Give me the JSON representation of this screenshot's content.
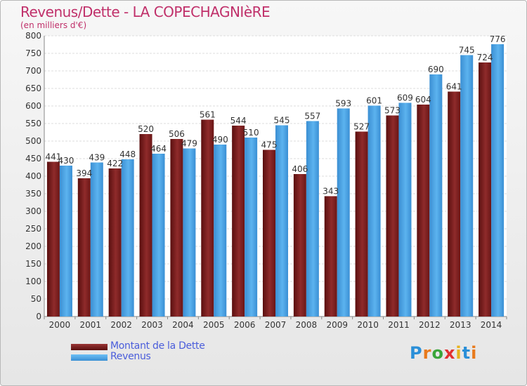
{
  "title": "Revenus/Dette - LA COPECHAGNIèRE",
  "subtitle": "(en milliers d'€)",
  "legend": {
    "dette": "Montant de la Dette",
    "revenus": "Revenus"
  },
  "logo": {
    "text": "Proxiti",
    "letters": [
      "P",
      "r",
      "o",
      "x",
      "i",
      "t",
      "i"
    ],
    "colors": [
      "#2a8fd8",
      "#e87a1c",
      "#3aa53a",
      "#e23030",
      "#e8b21c",
      "#2a8fd8",
      "#e87a1c"
    ]
  },
  "colors": {
    "dette": "#7a1e1e",
    "revenus": "#4aa3e6",
    "title": "#c0306a"
  },
  "chart_data": {
    "type": "bar",
    "categories": [
      "2000",
      "2001",
      "2002",
      "2003",
      "2004",
      "2005",
      "2006",
      "2007",
      "2008",
      "2009",
      "2010",
      "2011",
      "2012",
      "2013",
      "2014"
    ],
    "series": [
      {
        "name": "Montant de la Dette",
        "values": [
          441,
          394,
          422,
          520,
          506,
          561,
          544,
          475,
          406,
          343,
          527,
          573,
          604,
          641,
          724
        ]
      },
      {
        "name": "Revenus",
        "values": [
          430,
          439,
          448,
          464,
          479,
          490,
          510,
          545,
          557,
          593,
          601,
          609,
          690,
          745,
          776
        ]
      }
    ],
    "ylim": [
      0,
      800
    ],
    "yticks": [
      0,
      50,
      100,
      150,
      200,
      250,
      300,
      350,
      400,
      450,
      500,
      550,
      600,
      650,
      700,
      750,
      800
    ],
    "grid": true,
    "legend_position": "bottom-left"
  }
}
